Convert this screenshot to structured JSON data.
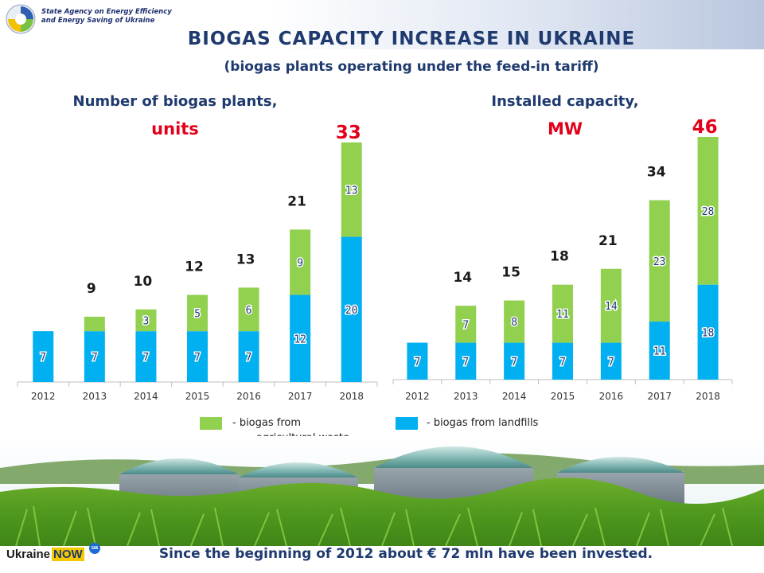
{
  "header": {
    "agency_line1": "State Agency on Energy Efficiency",
    "agency_line2": "and Energy Saving of Ukraine",
    "title": "BIOGAS CAPACITY INCREASE IN UKRAINE",
    "subtitle": "(biogas plants operating under the feed-in tariff)"
  },
  "legend": {
    "green_label_line1": "-     biogas from",
    "green_label_line2": "agricultural waste",
    "blue_label": "- biogas from landfills",
    "green_color": "#92d050",
    "blue_color": "#00b0f0"
  },
  "chart_data": [
    {
      "type": "bar",
      "title": "Number of biogas plants,",
      "unit": "units",
      "categories": [
        "2012",
        "2013",
        "2014",
        "2015",
        "2016",
        "2017",
        "2018"
      ],
      "series": [
        {
          "name": "biogas from landfills",
          "color": "#00b0f0",
          "values": [
            7,
            7,
            7,
            7,
            7,
            12,
            20
          ]
        },
        {
          "name": "biogas from agricultural waste",
          "color": "#92d050",
          "values": [
            0,
            2,
            3,
            5,
            6,
            9,
            13
          ]
        }
      ],
      "totals": [
        "",
        "9",
        "10",
        "12",
        "13",
        "21",
        "33"
      ],
      "segment_labels": {
        "bottom": [
          "7",
          "7",
          "7",
          "7",
          "7",
          "12",
          "20"
        ],
        "top": [
          "",
          "",
          "3",
          "5",
          "6",
          "9",
          "13"
        ]
      },
      "stacked": true,
      "ylim": [
        0,
        33
      ],
      "grid": false
    },
    {
      "type": "bar",
      "title": "Installed capacity,",
      "unit": "MW",
      "categories": [
        "2012",
        "2013",
        "2014",
        "2015",
        "2016",
        "2017",
        "2018"
      ],
      "series": [
        {
          "name": "biogas from landfills",
          "color": "#00b0f0",
          "values": [
            7,
            7,
            7,
            7,
            7,
            11,
            18
          ]
        },
        {
          "name": "biogas from agricultural waste",
          "color": "#92d050",
          "values": [
            0,
            7,
            8,
            11,
            14,
            23,
            28
          ]
        }
      ],
      "totals": [
        "",
        "14",
        "15",
        "18",
        "21",
        "34",
        "46"
      ],
      "segment_labels": {
        "bottom": [
          "7",
          "7",
          "7",
          "7",
          "7",
          "11",
          "18"
        ],
        "top": [
          "",
          "7",
          "8",
          "11",
          "14",
          "23",
          "28"
        ]
      },
      "stacked": true,
      "ylim": [
        0,
        46
      ],
      "grid": false
    }
  ],
  "footer": {
    "text": "Since the beginning of 2012 about € 72 mln have been invested.",
    "logo_ukraine": "Ukraine",
    "logo_now": "NOW",
    "logo_ua": "ua"
  }
}
